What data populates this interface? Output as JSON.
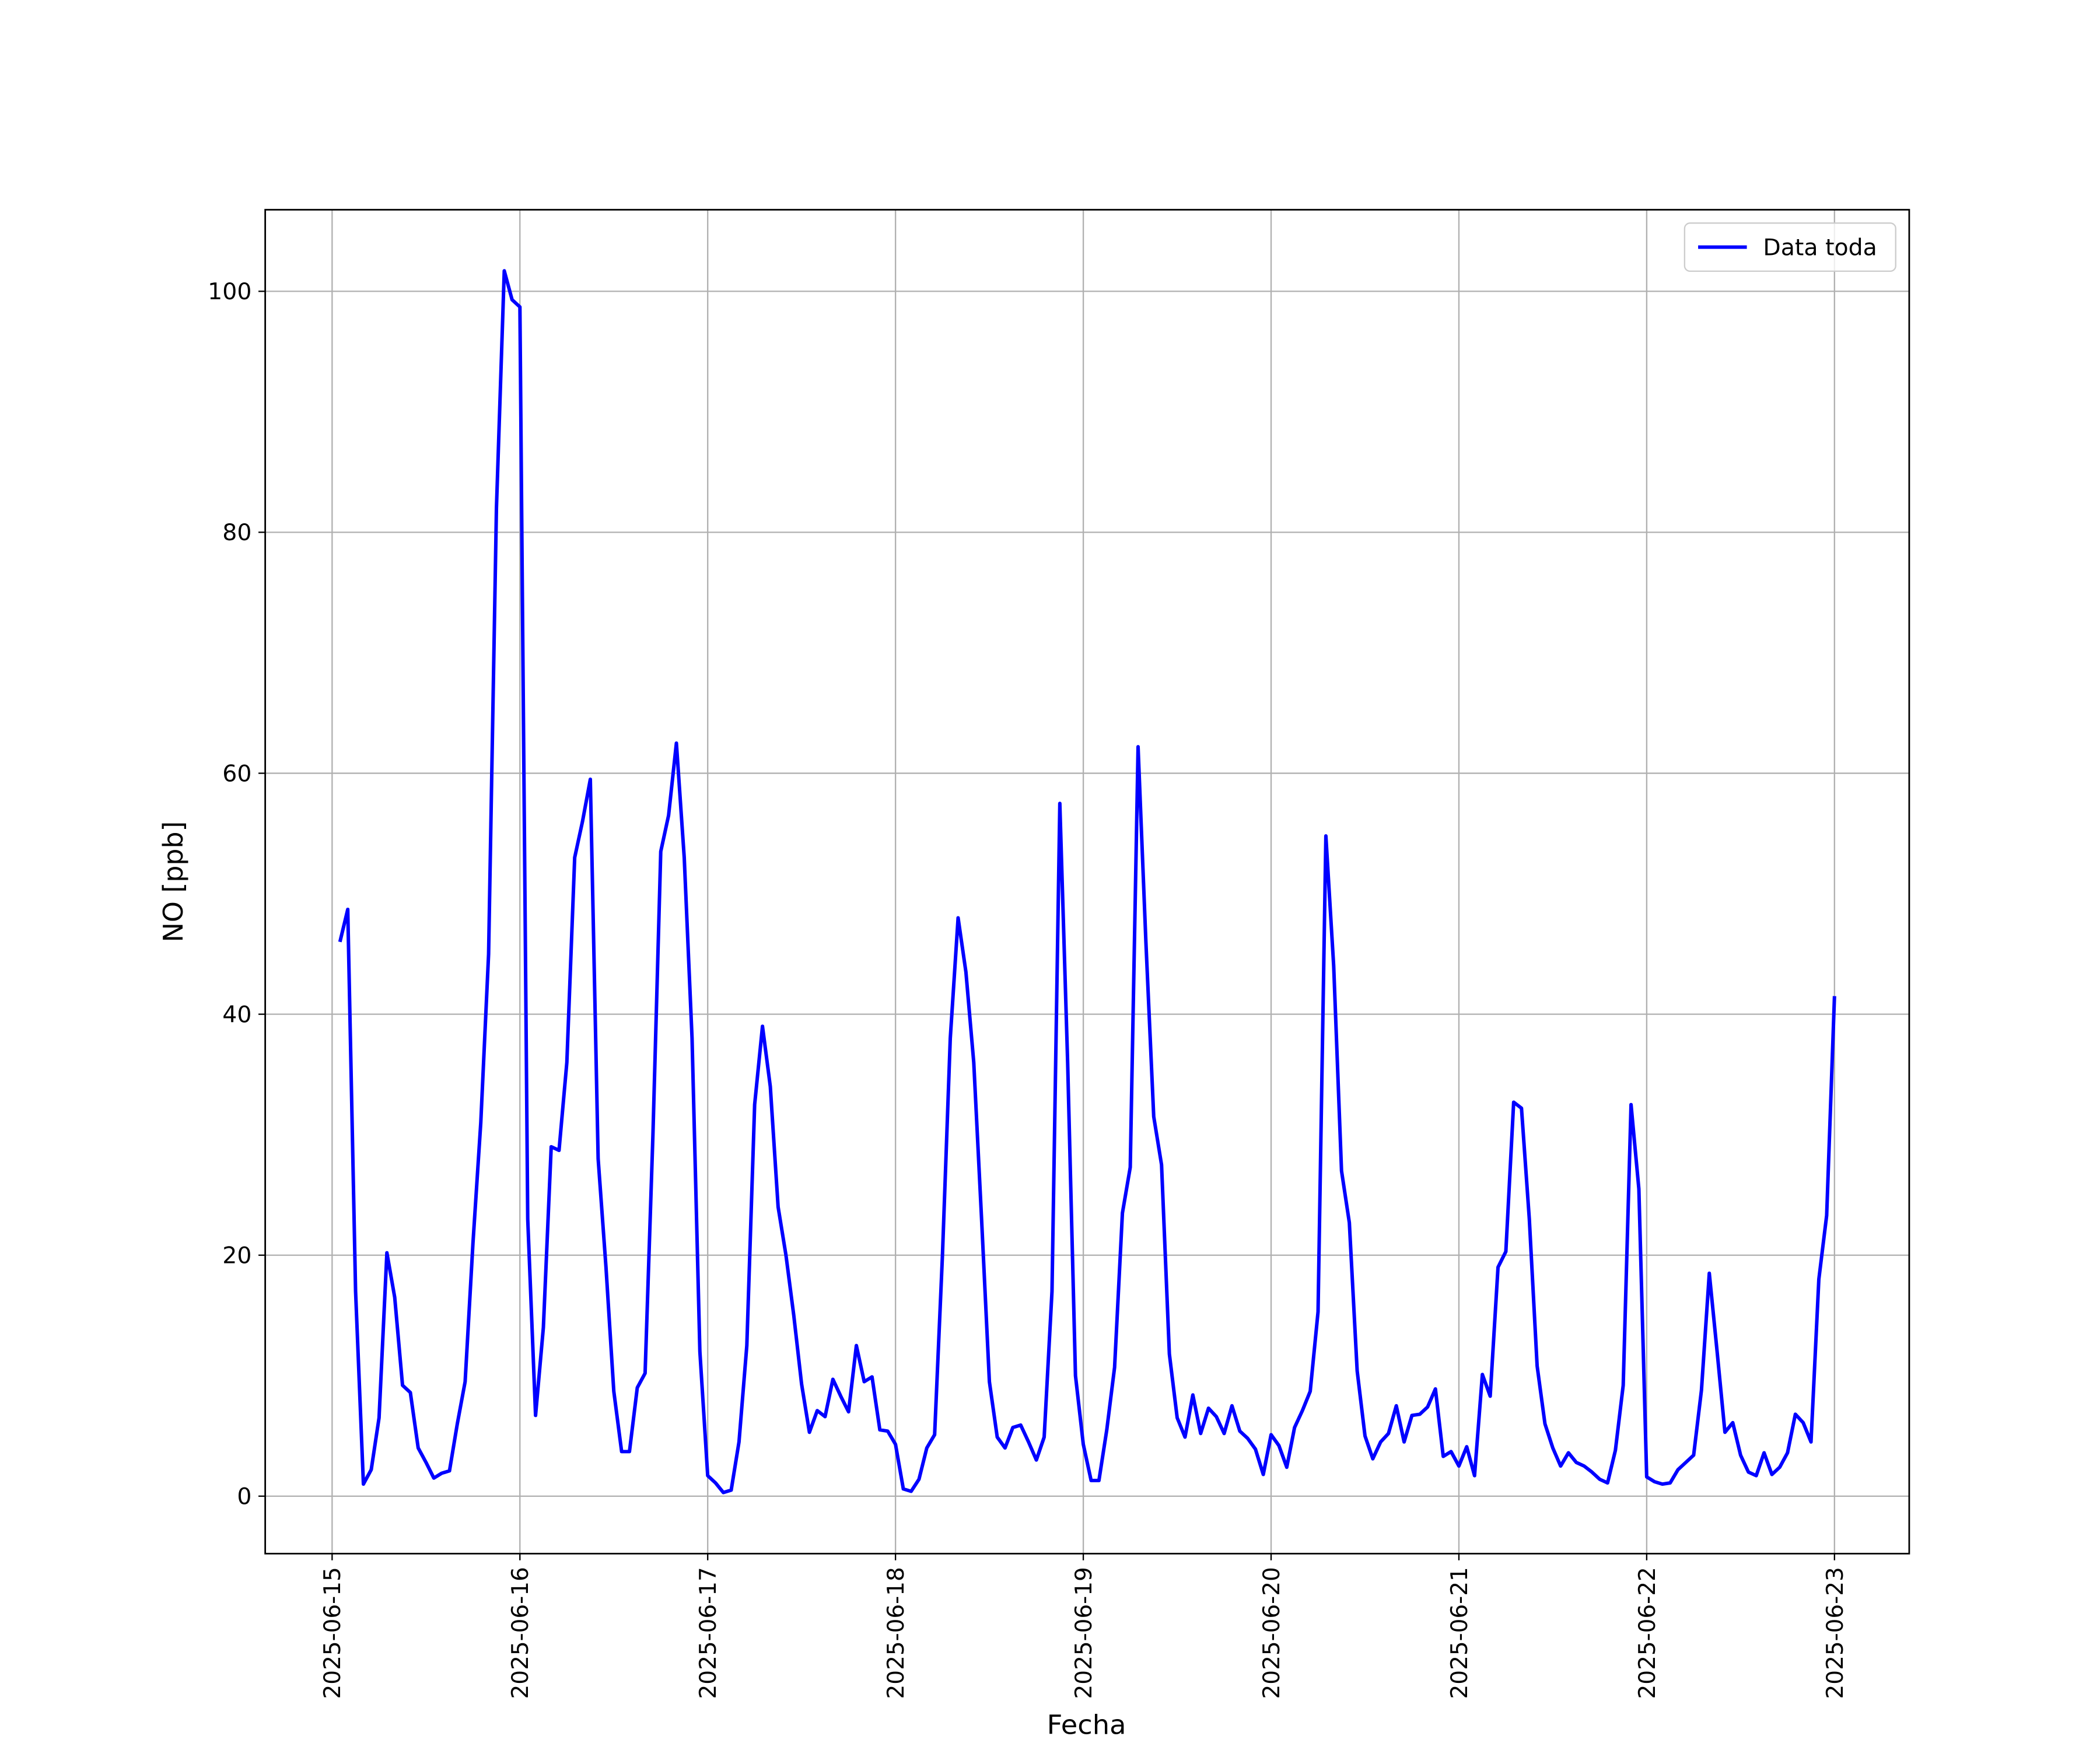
{
  "chart_data": {
    "type": "line",
    "x_label": "Fecha",
    "y_label": "NO [ppb]",
    "x": [
      "2025-06-15 01:00",
      "2025-06-15 02:00",
      "2025-06-15 03:00",
      "2025-06-15 04:00",
      "2025-06-15 05:00",
      "2025-06-15 06:00",
      "2025-06-15 07:00",
      "2025-06-15 08:00",
      "2025-06-15 09:00",
      "2025-06-15 10:00",
      "2025-06-15 11:00",
      "2025-06-15 12:00",
      "2025-06-15 13:00",
      "2025-06-15 14:00",
      "2025-06-15 15:00",
      "2025-06-15 16:00",
      "2025-06-15 17:00",
      "2025-06-15 18:00",
      "2025-06-15 19:00",
      "2025-06-15 20:00",
      "2025-06-15 21:00",
      "2025-06-15 22:00",
      "2025-06-15 23:00",
      "2025-06-16 00:00",
      "2025-06-16 01:00",
      "2025-06-16 02:00",
      "2025-06-16 03:00",
      "2025-06-16 04:00",
      "2025-06-16 05:00",
      "2025-06-16 06:00",
      "2025-06-16 07:00",
      "2025-06-16 08:00",
      "2025-06-16 09:00",
      "2025-06-16 10:00",
      "2025-06-16 11:00",
      "2025-06-16 12:00",
      "2025-06-16 13:00",
      "2025-06-16 14:00",
      "2025-06-16 15:00",
      "2025-06-16 16:00",
      "2025-06-16 17:00",
      "2025-06-16 18:00",
      "2025-06-16 19:00",
      "2025-06-16 20:00",
      "2025-06-16 21:00",
      "2025-06-16 22:00",
      "2025-06-16 23:00",
      "2025-06-17 00:00",
      "2025-06-17 01:00",
      "2025-06-17 02:00",
      "2025-06-17 03:00",
      "2025-06-17 04:00",
      "2025-06-17 05:00",
      "2025-06-17 06:00",
      "2025-06-17 07:00",
      "2025-06-17 08:00",
      "2025-06-17 09:00",
      "2025-06-17 10:00",
      "2025-06-17 11:00",
      "2025-06-17 12:00",
      "2025-06-17 13:00",
      "2025-06-17 14:00",
      "2025-06-17 15:00",
      "2025-06-17 16:00",
      "2025-06-17 17:00",
      "2025-06-17 18:00",
      "2025-06-17 19:00",
      "2025-06-17 20:00",
      "2025-06-17 21:00",
      "2025-06-17 22:00",
      "2025-06-17 23:00",
      "2025-06-18 00:00",
      "2025-06-18 01:00",
      "2025-06-18 02:00",
      "2025-06-18 03:00",
      "2025-06-18 04:00",
      "2025-06-18 05:00",
      "2025-06-18 06:00",
      "2025-06-18 07:00",
      "2025-06-18 08:00",
      "2025-06-18 09:00",
      "2025-06-18 10:00",
      "2025-06-18 11:00",
      "2025-06-18 12:00",
      "2025-06-18 13:00",
      "2025-06-18 14:00",
      "2025-06-18 15:00",
      "2025-06-18 16:00",
      "2025-06-18 17:00",
      "2025-06-18 18:00",
      "2025-06-18 19:00",
      "2025-06-18 20:00",
      "2025-06-18 21:00",
      "2025-06-18 22:00",
      "2025-06-18 23:00",
      "2025-06-19 00:00",
      "2025-06-19 01:00",
      "2025-06-19 02:00",
      "2025-06-19 03:00",
      "2025-06-19 04:00",
      "2025-06-19 05:00",
      "2025-06-19 06:00",
      "2025-06-19 07:00",
      "2025-06-19 08:00",
      "2025-06-19 09:00",
      "2025-06-19 10:00",
      "2025-06-19 11:00",
      "2025-06-19 12:00",
      "2025-06-19 13:00",
      "2025-06-19 14:00",
      "2025-06-19 15:00",
      "2025-06-19 16:00",
      "2025-06-19 17:00",
      "2025-06-19 18:00",
      "2025-06-19 19:00",
      "2025-06-19 20:00",
      "2025-06-19 21:00",
      "2025-06-19 22:00",
      "2025-06-19 23:00",
      "2025-06-20 00:00",
      "2025-06-20 01:00",
      "2025-06-20 02:00",
      "2025-06-20 03:00",
      "2025-06-20 04:00",
      "2025-06-20 05:00",
      "2025-06-20 06:00",
      "2025-06-20 07:00",
      "2025-06-20 08:00",
      "2025-06-20 09:00",
      "2025-06-20 10:00",
      "2025-06-20 11:00",
      "2025-06-20 12:00",
      "2025-06-20 13:00",
      "2025-06-20 14:00",
      "2025-06-20 15:00",
      "2025-06-20 16:00",
      "2025-06-20 17:00",
      "2025-06-20 18:00",
      "2025-06-20 19:00",
      "2025-06-20 20:00",
      "2025-06-20 21:00",
      "2025-06-20 22:00",
      "2025-06-20 23:00",
      "2025-06-21 00:00",
      "2025-06-21 01:00",
      "2025-06-21 02:00",
      "2025-06-21 03:00",
      "2025-06-21 04:00",
      "2025-06-21 05:00",
      "2025-06-21 06:00",
      "2025-06-21 07:00",
      "2025-06-21 08:00",
      "2025-06-21 09:00",
      "2025-06-21 10:00",
      "2025-06-21 11:00",
      "2025-06-21 12:00",
      "2025-06-21 13:00",
      "2025-06-21 14:00",
      "2025-06-21 15:00",
      "2025-06-21 16:00",
      "2025-06-21 17:00",
      "2025-06-21 18:00",
      "2025-06-21 19:00",
      "2025-06-21 20:00",
      "2025-06-21 21:00",
      "2025-06-21 22:00",
      "2025-06-21 23:00",
      "2025-06-22 00:00",
      "2025-06-22 01:00",
      "2025-06-22 02:00",
      "2025-06-22 03:00",
      "2025-06-22 04:00",
      "2025-06-22 05:00",
      "2025-06-22 06:00",
      "2025-06-22 07:00",
      "2025-06-22 08:00",
      "2025-06-22 09:00",
      "2025-06-22 10:00",
      "2025-06-22 11:00",
      "2025-06-22 12:00",
      "2025-06-22 13:00",
      "2025-06-22 14:00",
      "2025-06-22 15:00",
      "2025-06-22 16:00",
      "2025-06-22 17:00",
      "2025-06-22 18:00",
      "2025-06-22 19:00",
      "2025-06-22 20:00",
      "2025-06-22 21:00",
      "2025-06-22 22:00",
      "2025-06-22 23:00",
      "2025-06-23 00:00"
    ],
    "series": [
      {
        "name": "Data toda",
        "color": "#0000ff",
        "values": [
          46,
          48.7,
          17,
          1,
          2.2,
          6.5,
          20.2,
          16.5,
          9.2,
          8.6,
          4,
          2.8,
          1.5,
          1.9,
          2.1,
          6,
          9.5,
          21,
          31,
          45,
          82,
          101.7,
          99.3,
          98.7,
          23,
          6.7,
          14,
          29,
          28.7,
          36,
          53,
          56,
          59.5,
          28,
          19,
          8.7,
          3.7,
          3.7,
          9,
          10.2,
          30,
          53.5,
          56.5,
          62.5,
          53,
          38,
          12,
          1.7,
          1.1,
          0.3,
          0.5,
          4.5,
          12.5,
          32.5,
          39,
          34,
          24,
          20,
          15,
          9.3,
          5.3,
          7.1,
          6.6,
          9.7,
          8.3,
          7,
          12.5,
          9.5,
          9.9,
          5.5,
          5.4,
          4.3,
          0.6,
          0.4,
          1.4,
          4,
          5.1,
          20,
          38,
          48,
          43.5,
          36,
          23,
          9.5,
          4.9,
          4,
          5.7,
          5.9,
          4.5,
          3,
          4.9,
          17,
          57.5,
          36,
          10,
          4.3,
          1.3,
          1.3,
          5.5,
          10.7,
          23.5,
          27.3,
          62.2,
          46,
          31.5,
          27.5,
          11.8,
          6.5,
          4.9,
          8.4,
          5.2,
          7.3,
          6.6,
          5.2,
          7.5,
          5.4,
          4.8,
          3.9,
          1.8,
          5.1,
          4.2,
          2.4,
          5.7,
          7.1,
          8.7,
          15.3,
          54.8,
          44,
          27,
          22.7,
          10.4,
          5,
          3.1,
          4.5,
          5.2,
          7.5,
          4.5,
          6.7,
          6.8,
          7.4,
          8.9,
          3.3,
          3.7,
          2.5,
          4.1,
          1.7,
          10.1,
          8.3,
          19,
          20.3,
          32.7,
          32.2,
          23,
          10.8,
          6,
          4,
          2.5,
          3.6,
          2.8,
          2.5,
          2,
          1.4,
          1.1,
          3.8,
          9.2,
          32.5,
          25.5,
          1.6,
          1.2,
          1,
          1.1,
          2.2,
          2.8,
          3.4,
          8.8,
          18.5,
          12,
          5.3,
          6.1,
          3.4,
          2,
          1.7,
          3.6,
          1.8,
          2.4,
          3.6,
          6.8,
          6.1,
          4.5,
          18,
          23.3,
          41.5
        ]
      }
    ],
    "xlim": [
      "2025-06-14 15:27",
      "2025-06-23 09:33"
    ],
    "xticks": [
      "2025-06-15",
      "2025-06-16",
      "2025-06-17",
      "2025-06-18",
      "2025-06-19",
      "2025-06-20",
      "2025-06-21",
      "2025-06-22",
      "2025-06-23"
    ],
    "ylim": [
      -4.77,
      106.77
    ],
    "yticks": [
      0,
      20,
      40,
      60,
      80,
      100
    ],
    "grid": true,
    "legend_position": "upper-right"
  }
}
